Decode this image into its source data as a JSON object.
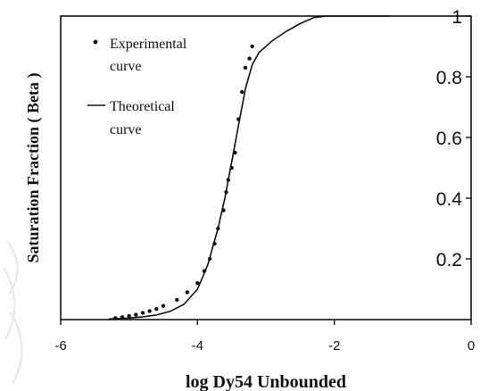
{
  "chart_data": {
    "type": "scatter",
    "xlabel": "log Dy54 Unbounded",
    "ylabel": "Saturation Fraction ( Beta )",
    "xlim": [
      -6,
      0
    ],
    "ylim": [
      0,
      1
    ],
    "x_ticks": [
      -6,
      -4,
      -2,
      0
    ],
    "x_tick_labels": [
      "-6",
      "-4",
      "-2",
      "0"
    ],
    "y_ticks": [
      0.2,
      0.4,
      0.6,
      0.8,
      1
    ],
    "y_tick_labels": [
      "0.2",
      "0.4",
      "0.6",
      "0.8",
      "1"
    ],
    "y_axis_side": "right",
    "grid": false,
    "legend_position": "top-left",
    "legend": [
      {
        "marker": "dot",
        "lines": [
          "Experimental",
          "curve"
        ]
      },
      {
        "marker": "line",
        "lines": [
          "Theoretical",
          "curve"
        ]
      }
    ],
    "series": [
      {
        "name": "Experimental curve",
        "kind": "points",
        "x": [
          -5.2,
          -5.1,
          -5.0,
          -4.9,
          -4.8,
          -4.7,
          -4.6,
          -4.5,
          -4.3,
          -4.15,
          -4.0,
          -3.9,
          -3.82,
          -3.75,
          -3.7,
          -3.62,
          -3.58,
          -3.55,
          -3.5,
          -3.45,
          -3.4,
          -3.35,
          -3.3,
          -3.24,
          -3.2
        ],
        "y": [
          0.005,
          0.008,
          0.012,
          0.016,
          0.022,
          0.028,
          0.035,
          0.045,
          0.065,
          0.09,
          0.12,
          0.16,
          0.2,
          0.25,
          0.3,
          0.36,
          0.42,
          0.46,
          0.5,
          0.55,
          0.66,
          0.75,
          0.83,
          0.86,
          0.9
        ]
      },
      {
        "name": "Theoretical curve",
        "kind": "line",
        "x": [
          -5.3,
          -5.0,
          -4.8,
          -4.6,
          -4.4,
          -4.2,
          -4.0,
          -3.85,
          -3.7,
          -3.6,
          -3.5,
          -3.4,
          -3.3,
          -3.2,
          -3.1,
          -2.9,
          -2.7,
          -2.5,
          -2.3,
          -2.1,
          -1.9,
          -1.7,
          -1.5,
          -1.2
        ],
        "y": [
          0.002,
          0.005,
          0.009,
          0.015,
          0.027,
          0.05,
          0.1,
          0.18,
          0.3,
          0.4,
          0.52,
          0.64,
          0.76,
          0.84,
          0.88,
          0.92,
          0.95,
          0.975,
          0.995,
          1.0,
          1.0,
          1.0,
          1.0,
          1.0
        ]
      }
    ]
  }
}
